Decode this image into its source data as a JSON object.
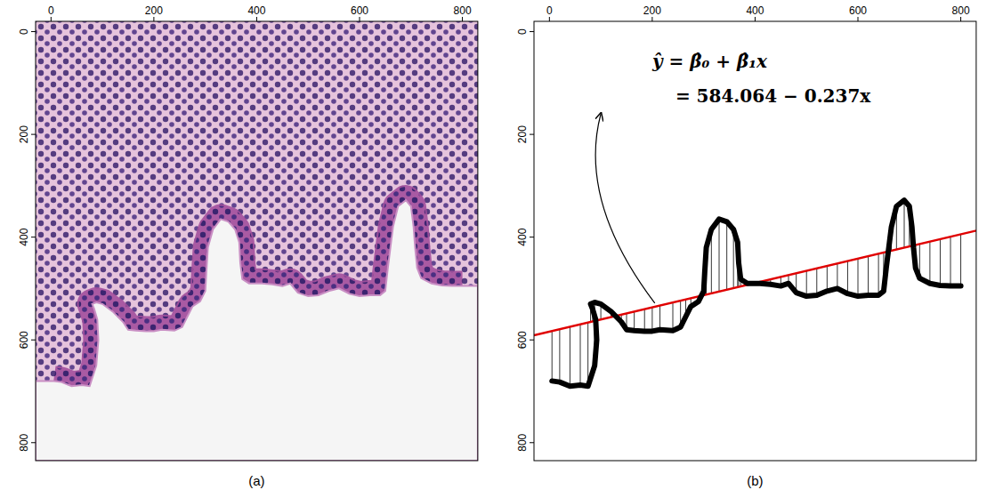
{
  "chart_data": [
    {
      "type": "image",
      "caption": "(a)",
      "xlim": [
        -30,
        830
      ],
      "ylim": [
        835,
        -20
      ],
      "xticks": [
        0,
        200,
        400,
        600,
        800
      ],
      "yticks": [
        0,
        200,
        400,
        600,
        800
      ]
    },
    {
      "type": "line",
      "caption": "(b)",
      "xlim": [
        -30,
        830
      ],
      "ylim": [
        835,
        -20
      ],
      "xticks": [
        0,
        200,
        400,
        600,
        800
      ],
      "yticks": [
        0,
        200,
        400,
        600,
        800
      ],
      "annotations": [
        "ŷ = β̂₀ + β̂₁x",
        "= 584.064 − 0.237x"
      ],
      "regression": {
        "intercept": 584.064,
        "slope": -0.237,
        "color": "#e00000"
      },
      "series": [
        {
          "color": "#000000",
          "x": [
            5,
            20,
            40,
            60,
            75,
            88,
            92,
            90,
            84,
            80,
            88,
            100,
            120,
            140,
            150,
            165,
            185,
            200,
            215,
            240,
            255,
            265,
            275,
            290,
            300,
            302,
            305,
            315,
            330,
            345,
            358,
            366,
            368,
            372,
            385,
            410,
            430,
            450,
            465,
            480,
            500,
            520,
            540,
            560,
            580,
            600,
            620,
            640,
            650,
            655,
            660,
            665,
            675,
            690,
            700,
            705,
            708,
            712,
            720,
            740,
            760,
            780,
            800
          ],
          "values": [
            680,
            682,
            690,
            688,
            690,
            650,
            600,
            560,
            540,
            530,
            527,
            530,
            545,
            565,
            580,
            582,
            583,
            583,
            580,
            582,
            575,
            555,
            535,
            525,
            505,
            470,
            420,
            385,
            365,
            370,
            385,
            410,
            450,
            482,
            490,
            490,
            492,
            495,
            490,
            508,
            515,
            513,
            505,
            500,
            510,
            515,
            513,
            513,
            505,
            460,
            420,
            380,
            340,
            328,
            340,
            380,
            420,
            460,
            480,
            490,
            494,
            495,
            495
          ]
        }
      ]
    }
  ]
}
